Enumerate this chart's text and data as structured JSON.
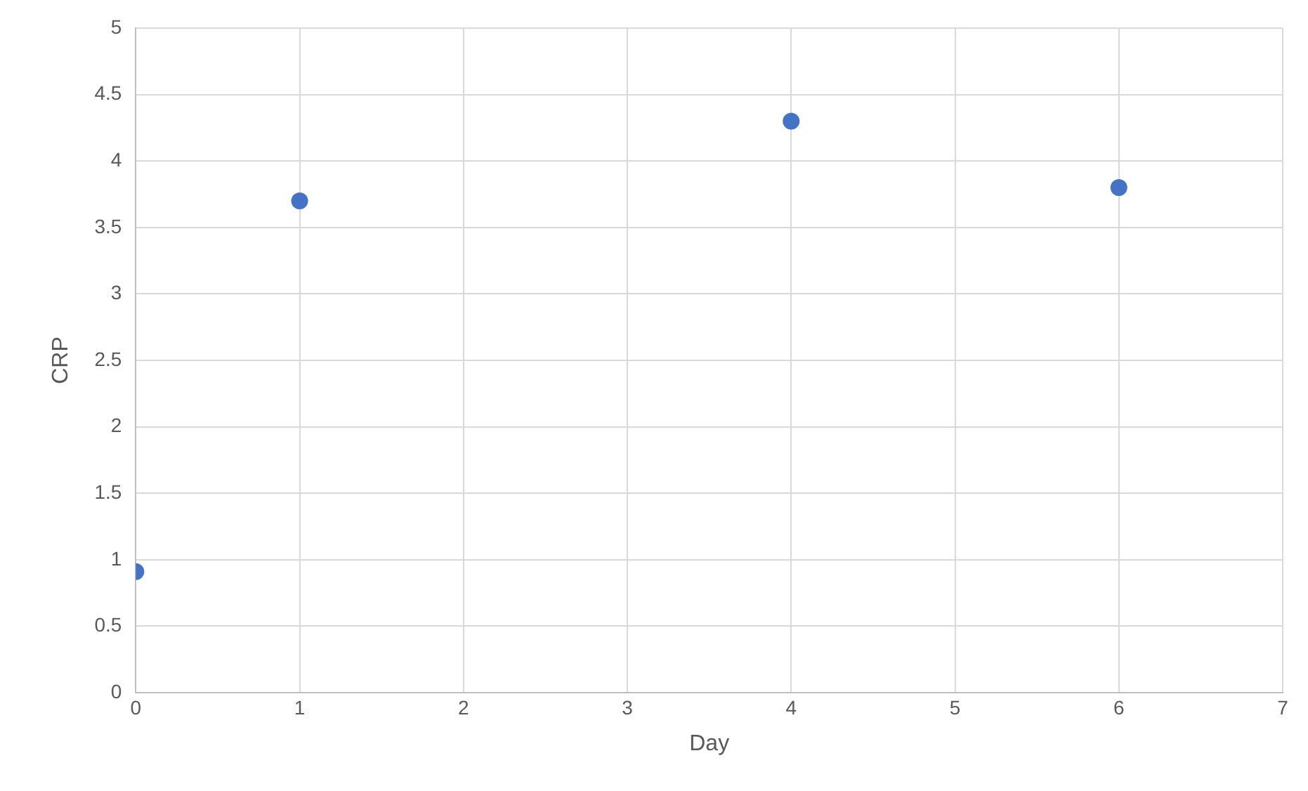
{
  "chart_data": {
    "type": "scatter",
    "xlabel": "Day",
    "ylabel": "CRP",
    "x": [
      0,
      1,
      4,
      6
    ],
    "series": [
      {
        "color": "#4472c4",
        "values": [
          0.91,
          3.7,
          4.3,
          3.8
        ]
      }
    ],
    "xlim": [
      0,
      7
    ],
    "xticks": [
      0,
      1,
      2,
      3,
      4,
      5,
      6,
      7
    ],
    "ylim": [
      0,
      5
    ],
    "yticks": [
      0,
      0.5,
      1,
      1.5,
      2,
      2.5,
      3,
      3.5,
      4,
      4.5,
      5
    ],
    "grid": true,
    "marker": "circle",
    "legend": false
  }
}
